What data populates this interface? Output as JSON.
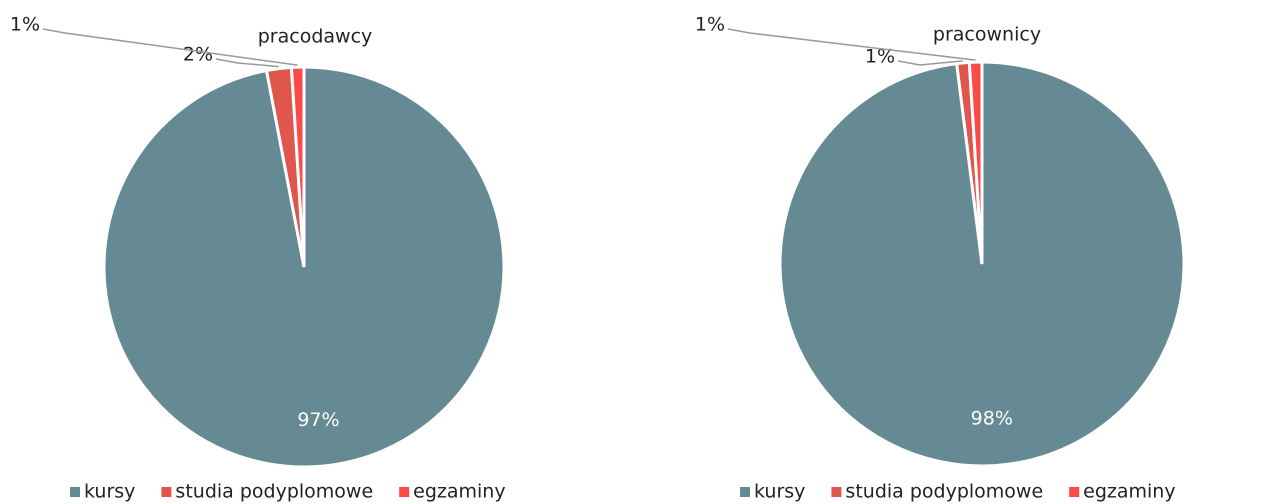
{
  "chart_data": [
    {
      "type": "pie",
      "title": "pracodawcy",
      "categories": [
        "kursy",
        "studia podyplomowe",
        "egzaminy"
      ],
      "values": [
        97,
        2,
        1
      ],
      "value_labels": [
        "97%",
        "2%",
        "1%"
      ],
      "colors": [
        "#668a93",
        "#e0554c",
        "#ff4a4a"
      ],
      "legend": "bottom"
    },
    {
      "type": "pie",
      "title": "pracownicy",
      "categories": [
        "kursy",
        "studia podyplomowe",
        "egzaminy"
      ],
      "values": [
        98,
        1,
        1
      ],
      "value_labels": [
        "98%",
        "1%",
        "1%"
      ],
      "colors": [
        "#668a93",
        "#e0554c",
        "#ff4a4a"
      ],
      "legend": "bottom"
    }
  ]
}
